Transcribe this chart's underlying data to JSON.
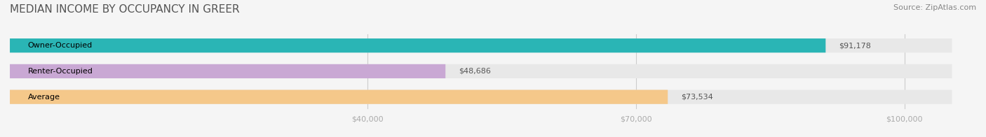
{
  "title": "MEDIAN INCOME BY OCCUPANCY IN GREER",
  "source": "Source: ZipAtlas.com",
  "categories": [
    "Owner-Occupied",
    "Renter-Occupied",
    "Average"
  ],
  "values": [
    91178,
    48686,
    73534
  ],
  "labels": [
    "$91,178",
    "$48,686",
    "$73,534"
  ],
  "bar_colors": [
    "#2ab5b5",
    "#c9a8d4",
    "#f5c88a"
  ],
  "x_ticks": [
    40000,
    70000,
    100000
  ],
  "x_tick_labels": [
    "$40,000",
    "$70,000",
    "$100,000"
  ],
  "xlim": [
    0,
    108000
  ],
  "background_color": "#f5f5f5",
  "bar_background_color": "#e8e8e8",
  "title_fontsize": 11,
  "source_fontsize": 8,
  "label_fontsize": 8,
  "tick_fontsize": 8,
  "category_fontsize": 8,
  "bar_height": 0.55
}
